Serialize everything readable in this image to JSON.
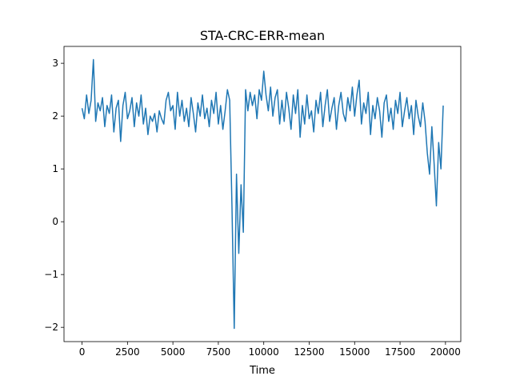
{
  "chart_data": {
    "type": "line",
    "title": "STA-CRC-ERR-mean",
    "x_label": "Time",
    "x": [
      0,
      125,
      250,
      375,
      500,
      625,
      750,
      875,
      1000,
      1125,
      1250,
      1375,
      1500,
      1625,
      1750,
      1875,
      2000,
      2125,
      2250,
      2375,
      2500,
      2625,
      2750,
      2875,
      3000,
      3125,
      3250,
      3375,
      3500,
      3625,
      3750,
      3875,
      4000,
      4125,
      4250,
      4375,
      4500,
      4625,
      4750,
      4875,
      5000,
      5125,
      5250,
      5375,
      5500,
      5625,
      5750,
      5875,
      6000,
      6125,
      6250,
      6375,
      6500,
      6625,
      6750,
      6875,
      7000,
      7125,
      7250,
      7375,
      7500,
      7625,
      7750,
      7875,
      8000,
      8125,
      8250,
      8375,
      8500,
      8625,
      8750,
      8875,
      9000,
      9125,
      9250,
      9375,
      9500,
      9625,
      9750,
      9875,
      10000,
      10125,
      10250,
      10375,
      10500,
      10625,
      10750,
      10875,
      11000,
      11125,
      11250,
      11375,
      11500,
      11625,
      11750,
      11875,
      12000,
      12125,
      12250,
      12375,
      12500,
      12625,
      12750,
      12875,
      13000,
      13125,
      13250,
      13375,
      13500,
      13625,
      13750,
      13875,
      14000,
      14125,
      14250,
      14375,
      14500,
      14625,
      14750,
      14875,
      15000,
      15125,
      15250,
      15375,
      15500,
      15625,
      15750,
      15875,
      16000,
      16125,
      16250,
      16375,
      16500,
      16625,
      16750,
      16875,
      17000,
      17125,
      17250,
      17375,
      17500,
      17625,
      17750,
      17875,
      18000,
      18125,
      18250,
      18375,
      18500,
      18625,
      18750,
      18875,
      19000,
      19125,
      19250,
      19375,
      19500,
      19625,
      19750,
      19875
    ],
    "series": [
      {
        "color": "#1f77b4",
        "values": [
          2.15,
          1.95,
          2.4,
          2.05,
          2.3,
          3.07,
          1.9,
          2.25,
          2.1,
          2.35,
          1.8,
          2.2,
          2.05,
          2.4,
          1.7,
          2.15,
          2.3,
          1.52,
          2.2,
          2.45,
          1.95,
          2.1,
          2.35,
          1.8,
          2.25,
          2.0,
          2.4,
          1.85,
          2.15,
          1.65,
          2.0,
          1.9,
          2.05,
          1.7,
          2.1,
          1.95,
          1.85,
          2.3,
          2.45,
          2.1,
          2.2,
          1.75,
          2.45,
          2.0,
          2.3,
          1.9,
          2.15,
          1.8,
          2.35,
          2.05,
          1.7,
          2.25,
          2.0,
          2.4,
          1.95,
          2.15,
          1.8,
          2.3,
          2.05,
          2.45,
          1.85,
          2.2,
          1.75,
          2.1,
          2.5,
          2.3,
          0.3,
          -2.02,
          0.9,
          -0.6,
          0.7,
          -0.2,
          2.5,
          2.1,
          2.45,
          2.2,
          2.4,
          1.95,
          2.5,
          2.3,
          2.85,
          2.4,
          2.1,
          2.55,
          2.0,
          2.35,
          2.5,
          1.85,
          2.3,
          1.9,
          2.45,
          2.15,
          1.75,
          2.4,
          2.05,
          2.5,
          1.6,
          2.2,
          1.85,
          2.4,
          1.95,
          2.1,
          1.7,
          2.3,
          2.05,
          2.45,
          1.8,
          2.2,
          2.5,
          1.9,
          2.15,
          2.35,
          1.75,
          2.2,
          2.45,
          2.05,
          1.9,
          2.35,
          2.1,
          2.55,
          2.0,
          2.4,
          2.68,
          1.85,
          2.25,
          2.05,
          2.45,
          1.65,
          2.2,
          1.95,
          2.35,
          2.1,
          1.6,
          2.25,
          2.4,
          1.9,
          2.15,
          1.75,
          2.3,
          2.05,
          2.45,
          1.8,
          2.1,
          2.35,
          1.95,
          2.2,
          1.65,
          2.3,
          2.0,
          1.8,
          2.25,
          1.9,
          1.3,
          0.9,
          1.8,
          1.1,
          0.3,
          1.5,
          1.0,
          2.2
        ]
      }
    ],
    "xlim": [
      -993,
      20843
    ],
    "ylim": [
      -2.27,
      3.32
    ],
    "xticks": [
      0,
      2500,
      5000,
      7500,
      10000,
      12500,
      15000,
      17500,
      20000
    ],
    "yticks": [
      {
        "value": -2,
        "label": "−2"
      },
      {
        "value": -1,
        "label": "−1"
      },
      0,
      1,
      2,
      3
    ]
  }
}
